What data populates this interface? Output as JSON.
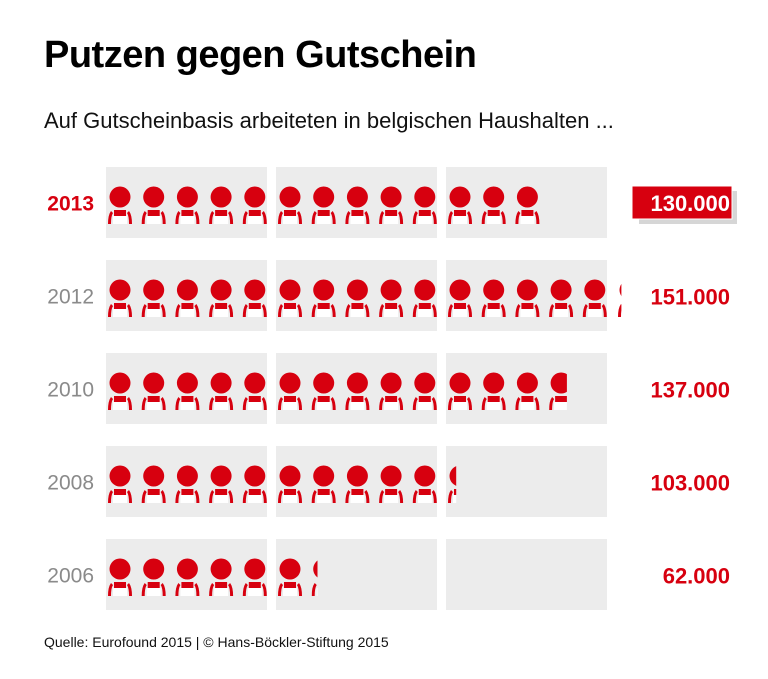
{
  "title": "Putzen gegen Gutschein",
  "subtitle": "Auf Gutscheinbasis arbeiteten in belgischen Haushalten ...",
  "source": "Quelle: Eurofound 2015 | © Hans-Böckler-Stiftung 2015",
  "colors": {
    "accent": "#d7000f",
    "panel": "#ececec",
    "year": "#8a8a8a"
  },
  "chart_data": {
    "type": "pictogram",
    "icon": "worker-icon",
    "icon_value": 10000,
    "icons_per_panel": 5,
    "highlight": "2013",
    "rows": [
      {
        "year": "2013",
        "value": 130000,
        "label": "130.000"
      },
      {
        "year": "2012",
        "value": 151000,
        "label": "151.000"
      },
      {
        "year": "2010",
        "value": 137000,
        "label": "137.000"
      },
      {
        "year": "2008",
        "value": 103000,
        "label": "103.000"
      },
      {
        "year": "2006",
        "value": 62000,
        "label": "62.000"
      }
    ]
  }
}
